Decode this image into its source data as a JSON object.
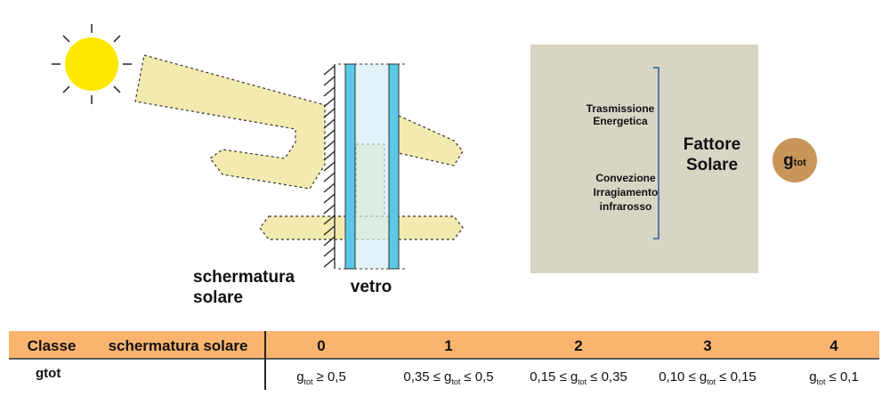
{
  "diagram": {
    "shading_label": [
      "schermatura",
      "solare"
    ],
    "glass_label": "vetro",
    "transmission_label": [
      "Trasmissione",
      "Energetica"
    ],
    "convection_label": [
      "Convezione",
      "Irragiamento",
      "infrarosso"
    ],
    "solar_factor_label": [
      "Fattore",
      "Solare"
    ],
    "badge": {
      "symbol": "g",
      "sub": "tot"
    }
  },
  "table": {
    "header": [
      "Classe",
      "schermatura solare",
      "0",
      "1",
      "2",
      "3",
      "4"
    ],
    "rows": [
      [
        "gtot",
        {
          "symbol": "g",
          "sub": "tot",
          "after": "≥ 0,5"
        },
        {
          "before": "0,35 ≤",
          "symbol": "g",
          "sub": "tot",
          "after": "≤ 0,5"
        },
        {
          "before": "0,15 ≤",
          "symbol": "g",
          "sub": "tot",
          "after": "≤ 0,35"
        },
        {
          "before": "0,10 ≤",
          "symbol": "g",
          "sub": "tot",
          "after": "≤ 0,15"
        },
        {
          "symbol": "g",
          "sub": "tot",
          "after": "≤ 0,1"
        }
      ]
    ]
  }
}
